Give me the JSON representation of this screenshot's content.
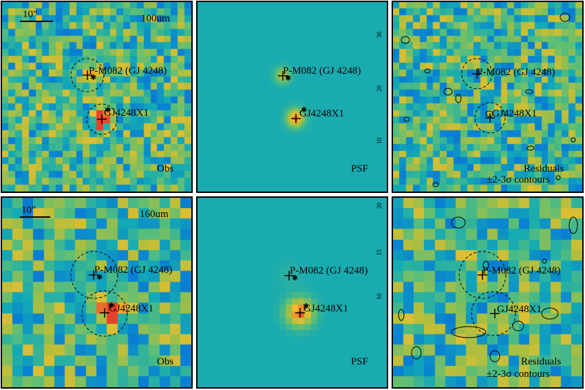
{
  "rows": [
    {
      "band": "100um",
      "scale_label": "10\"",
      "source_a": "P-M082 (GJ 4248)",
      "source_b": "GJ4248X1",
      "panels": {
        "obs": "Obs",
        "psf": "PSF",
        "residual_line1": "Residuals",
        "residual_line2": "±2-3σ contours"
      },
      "psf_ticks": [
        "30",
        "20",
        "10"
      ]
    },
    {
      "band": "160um",
      "scale_label": "10\"",
      "source_a": "P-M082 (GJ 4248)",
      "source_b": "GJ4248X1",
      "panels": {
        "obs": "Obs",
        "psf": "PSF",
        "residual_line1": "Residuals",
        "residual_line2": "±2-3σ contours"
      },
      "psf_ticks": [
        "20",
        "15",
        "10"
      ]
    }
  ],
  "colors": {
    "psf_background": "#5aa8a0",
    "hot": "#e8402a",
    "cold": "#3a1a7a"
  }
}
